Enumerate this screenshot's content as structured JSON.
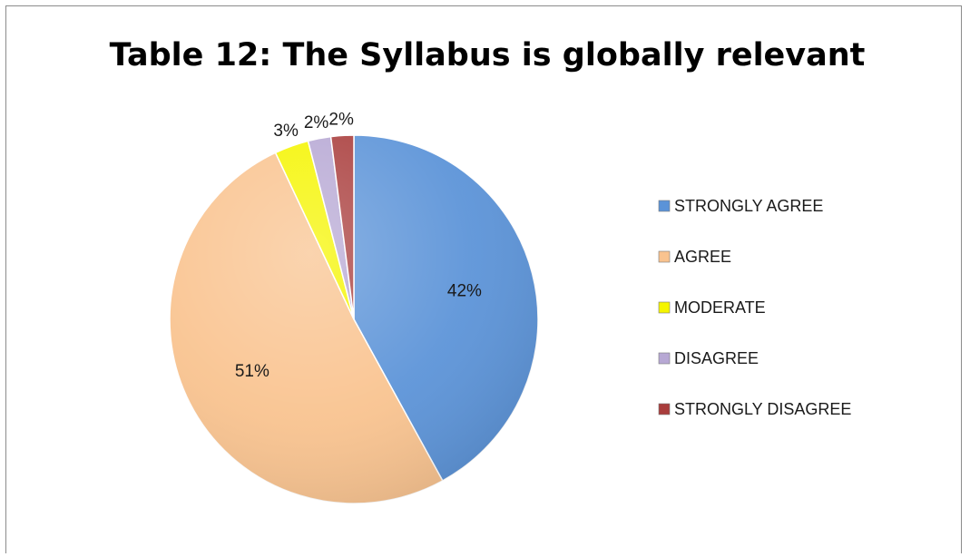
{
  "chart_data": {
    "type": "pie",
    "title": "Table 12: The Syllabus is globally relevant",
    "categories": [
      "STRONGLY AGREE",
      "AGREE",
      "MODERATE",
      "DISAGREE",
      "STRONGLY DISAGREE"
    ],
    "values": [
      42,
      51,
      3,
      2,
      2
    ],
    "data_labels": [
      "42%",
      "51%",
      "3%",
      "2%",
      "2%"
    ],
    "colors": [
      "#5b93d8",
      "#f9c38f",
      "#f5f500",
      "#b7a8d4",
      "#a93d3c"
    ],
    "legend_position": "right",
    "start_angle": "12 o'clock",
    "direction": "clockwise"
  }
}
